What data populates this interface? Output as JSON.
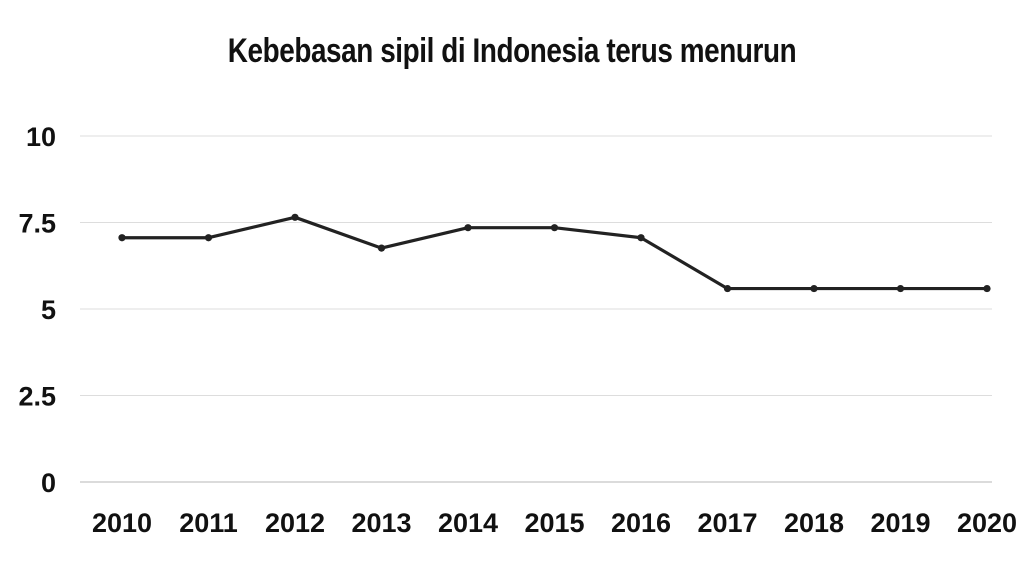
{
  "chart_data": {
    "type": "line",
    "title": "Kebebasan sipil di Indonesia terus menurun",
    "xlabel": "",
    "ylabel": "",
    "categories": [
      "2010",
      "2011",
      "2012",
      "2013",
      "2014",
      "2015",
      "2016",
      "2017",
      "2018",
      "2019",
      "2020"
    ],
    "series": [
      {
        "values": [
          7.06,
          7.06,
          7.65,
          6.76,
          7.35,
          7.35,
          7.06,
          5.59,
          5.59,
          5.59,
          5.59
        ]
      }
    ],
    "ylim": [
      0,
      10
    ],
    "yticks": [
      "0",
      "2.5",
      "5",
      "7.5",
      "10"
    ],
    "grid": true,
    "legend": "none",
    "colors": {
      "line": "#222222",
      "grid": "#dddddd",
      "text": "#111111"
    }
  }
}
